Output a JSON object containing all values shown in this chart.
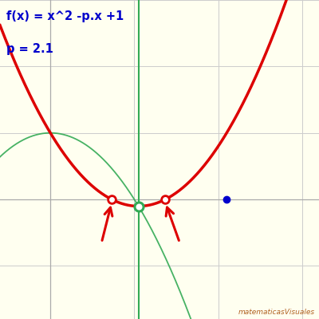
{
  "title_line1": "f(x) = x^2 -p.x +1",
  "title_line2": "p = 2.1",
  "p": 2.1,
  "background_color": "#fffff0",
  "grid_color": "#cccccc",
  "parabola_color": "#dd0000",
  "green_curve_color": "#33aa55",
  "green_line_color": "#33aa55",
  "blue_dot_color": "#0000cc",
  "text_color": "#0000cc",
  "xlim": [
    -0.6,
    3.2
  ],
  "ylim": [
    -1.8,
    3.0
  ],
  "watermark": "matematicasVisuales",
  "watermark_color": "#b06020"
}
